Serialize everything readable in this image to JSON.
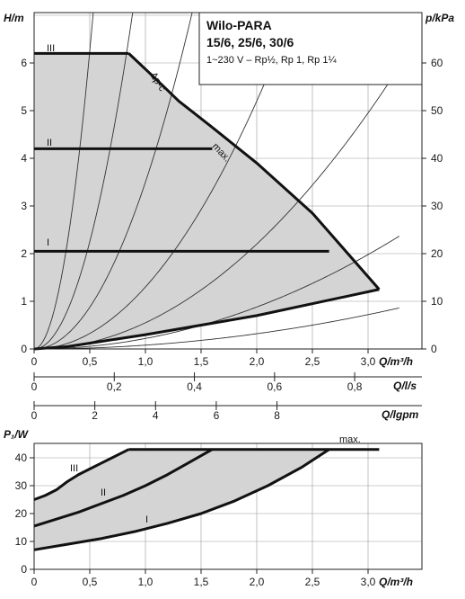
{
  "chart_data": [
    {
      "type": "line",
      "title": "Wilo-PARA",
      "subtitle": "15/6, 25/6, 30/6",
      "note": "1~230 V – Rp½, Rp 1, Rp 1¼",
      "ylabel": "H/m",
      "ylabel_right": "p/kPa",
      "xlabel": "Q/m³/h",
      "xlim": [
        0,
        3.3
      ],
      "ylim": [
        0,
        6.4
      ],
      "ylim_right": [
        0,
        64
      ],
      "x_ticks": [
        "0",
        "0,5",
        "1,0",
        "1,5",
        "2,0",
        "2,5",
        "3,0"
      ],
      "y_ticks": [
        "0",
        "1",
        "2",
        "3",
        "4",
        "5",
        "6"
      ],
      "y_ticks_right": [
        "0",
        "10",
        "20",
        "30",
        "40",
        "50",
        "60"
      ],
      "grid": true,
      "secondary_x_axes": [
        {
          "label": "Q/l/s",
          "ticks": [
            "0",
            "0,2",
            "0,4",
            "0,6",
            "0,8"
          ],
          "values": [
            0,
            0.2,
            0.4,
            0.6,
            0.8
          ],
          "max": 0.9167
        },
        {
          "label": "Q/lgpm",
          "ticks": [
            "0",
            "2",
            "4",
            "6",
            "8"
          ],
          "values": [
            0,
            2,
            4,
            6,
            8
          ],
          "max": 12.1
        }
      ],
      "envelope": {
        "x": [
          0,
          0.85,
          1.1,
          1.3,
          1.6,
          2.0,
          2.5,
          3.1,
          2.0,
          1.0,
          0.3,
          0
        ],
        "y": [
          6.2,
          6.2,
          5.65,
          5.2,
          4.65,
          3.9,
          2.85,
          1.25,
          0.7,
          0.3,
          0.05,
          0
        ]
      },
      "series": [
        {
          "name": "III",
          "x": [
            0,
            0.85
          ],
          "y": [
            6.2,
            6.2
          ]
        },
        {
          "name": "II",
          "x": [
            0,
            1.6
          ],
          "y": [
            4.2,
            4.2
          ]
        },
        {
          "name": "I",
          "x": [
            0,
            2.65
          ],
          "y": [
            2.05,
            2.05
          ]
        },
        {
          "name": "Δp-c",
          "x": [
            0.85,
            1.1,
            1.3,
            1.6
          ],
          "y": [
            6.2,
            5.65,
            5.2,
            4.65
          ]
        },
        {
          "name": "max.",
          "x": [
            1.6,
            2.0,
            2.5,
            3.1
          ],
          "y": [
            4.65,
            3.9,
            2.85,
            1.25
          ]
        }
      ],
      "system_curve_k": [
        25,
        9,
        3.5,
        1.3,
        0.55,
        0.22,
        0.08
      ]
    },
    {
      "type": "line",
      "ylabel": "P₁/W",
      "xlabel": "Q/m³/h",
      "xlim": [
        0,
        3.3
      ],
      "ylim": [
        0,
        45
      ],
      "x_ticks": [
        "0",
        "0,5",
        "1,0",
        "1,5",
        "2,0",
        "2,5",
        "3,0"
      ],
      "y_ticks": [
        "0",
        "10",
        "20",
        "30",
        "40"
      ],
      "grid": true,
      "series": [
        {
          "name": "III",
          "x": [
            0,
            0.1,
            0.2,
            0.3,
            0.4,
            0.5,
            0.6,
            0.7,
            0.85
          ],
          "y": [
            25,
            26.5,
            28.5,
            31.5,
            34,
            36,
            38,
            40,
            43
          ]
        },
        {
          "name": "II",
          "x": [
            0,
            0.2,
            0.4,
            0.6,
            0.8,
            1.0,
            1.2,
            1.4,
            1.6
          ],
          "y": [
            15.5,
            18,
            20.5,
            23.5,
            26.5,
            30,
            34,
            38.5,
            43
          ]
        },
        {
          "name": "I",
          "x": [
            0,
            0.3,
            0.6,
            0.9,
            1.2,
            1.5,
            1.8,
            2.1,
            2.4,
            2.65
          ],
          "y": [
            7,
            9,
            11,
            13.5,
            16.5,
            20,
            24.5,
            30,
            36.5,
            43
          ]
        },
        {
          "name": "max.",
          "x": [
            0.85,
            3.1
          ],
          "y": [
            43,
            43
          ]
        }
      ]
    }
  ]
}
